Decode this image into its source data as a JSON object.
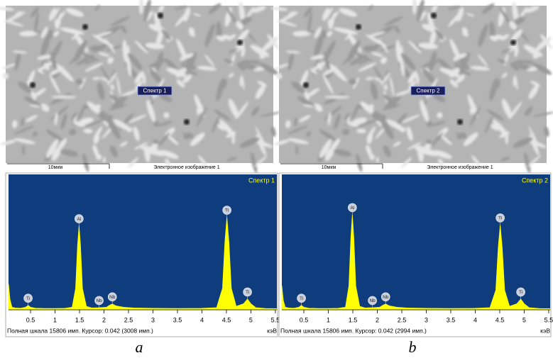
{
  "chart_data": [
    {
      "type": "area",
      "title": "Спектр 1",
      "x_label": "кэВ",
      "footer": "Полная шкала 15806 имп. Курсор: 0.042 (3008 имп.)",
      "color": "#ffff00",
      "background": "#0f3c7c",
      "xlim": [
        0.05,
        5.53
      ],
      "ylim": [
        0,
        15806
      ],
      "xticks": [
        0.5,
        1,
        1.5,
        2,
        2.5,
        3,
        3.5,
        4,
        4.5,
        5,
        5.5
      ],
      "x": [
        0.05,
        0.08,
        0.12,
        0.2,
        0.3,
        0.4,
        0.45,
        0.5,
        0.6,
        0.8,
        1.0,
        1.2,
        1.35,
        1.42,
        1.46,
        1.49,
        1.52,
        1.56,
        1.64,
        1.75,
        1.9,
        2.05,
        2.12,
        2.17,
        2.25,
        2.4,
        2.6,
        3.0,
        3.5,
        4.0,
        4.3,
        4.42,
        4.47,
        4.51,
        4.55,
        4.6,
        4.7,
        4.85,
        4.93,
        5.0,
        5.1,
        5.3,
        5.53
      ],
      "values": [
        3000,
        1200,
        300,
        200,
        180,
        300,
        520,
        300,
        180,
        150,
        150,
        170,
        300,
        2500,
        7500,
        9800,
        7500,
        2500,
        400,
        220,
        250,
        300,
        550,
        680,
        450,
        300,
        220,
        170,
        150,
        170,
        250,
        2500,
        8000,
        10800,
        8000,
        2500,
        400,
        700,
        1250,
        700,
        250,
        150,
        130
      ],
      "annotations": [
        {
          "text": "Ti",
          "x": 0.45
        },
        {
          "text": "Al",
          "x": 1.49
        },
        {
          "text": "Nb",
          "x": 1.9
        },
        {
          "text": "Nb",
          "x": 2.17
        },
        {
          "text": "Ti",
          "x": 4.51
        },
        {
          "text": "Ti",
          "x": 4.93
        }
      ]
    },
    {
      "type": "area",
      "title": "Спектр 2",
      "x_label": "кэВ",
      "footer": "Полная шкала 15806 имп. Курсор: 0.042 (2994 имп.)",
      "color": "#ffff00",
      "background": "#0f3c7c",
      "xlim": [
        0.05,
        5.53
      ],
      "ylim": [
        0,
        15806
      ],
      "xticks": [
        0.5,
        1,
        1.5,
        2,
        2.5,
        3,
        3.5,
        4,
        4.5,
        5,
        5.5
      ],
      "x": [
        0.05,
        0.08,
        0.12,
        0.2,
        0.3,
        0.4,
        0.45,
        0.5,
        0.6,
        0.8,
        1.0,
        1.2,
        1.35,
        1.42,
        1.46,
        1.49,
        1.52,
        1.56,
        1.64,
        1.75,
        1.9,
        2.05,
        2.12,
        2.17,
        2.25,
        2.4,
        2.6,
        3.0,
        3.5,
        4.0,
        4.3,
        4.42,
        4.47,
        4.51,
        4.55,
        4.6,
        4.7,
        4.85,
        4.93,
        5.0,
        5.1,
        5.3,
        5.53
      ],
      "values": [
        2800,
        1100,
        300,
        200,
        180,
        300,
        520,
        300,
        180,
        150,
        150,
        170,
        300,
        2800,
        8400,
        11100,
        8400,
        2800,
        400,
        220,
        250,
        300,
        550,
        680,
        450,
        300,
        220,
        170,
        150,
        170,
        250,
        2300,
        7300,
        9900,
        7300,
        2300,
        400,
        700,
        1250,
        700,
        250,
        150,
        130
      ],
      "annotations": [
        {
          "text": "Ti",
          "x": 0.45
        },
        {
          "text": "Al",
          "x": 1.49
        },
        {
          "text": "Nb",
          "x": 1.9
        },
        {
          "text": "Nb",
          "x": 2.17
        },
        {
          "text": "Ti",
          "x": 4.51
        },
        {
          "text": "Ti",
          "x": 4.93
        }
      ]
    }
  ],
  "panels": [
    {
      "label": "a",
      "scale_text": "10мкм",
      "image_caption": "Электронное изображение 1"
    },
    {
      "label": "b",
      "scale_text": "10мкм",
      "image_caption": "Электронное изображение 1"
    }
  ]
}
